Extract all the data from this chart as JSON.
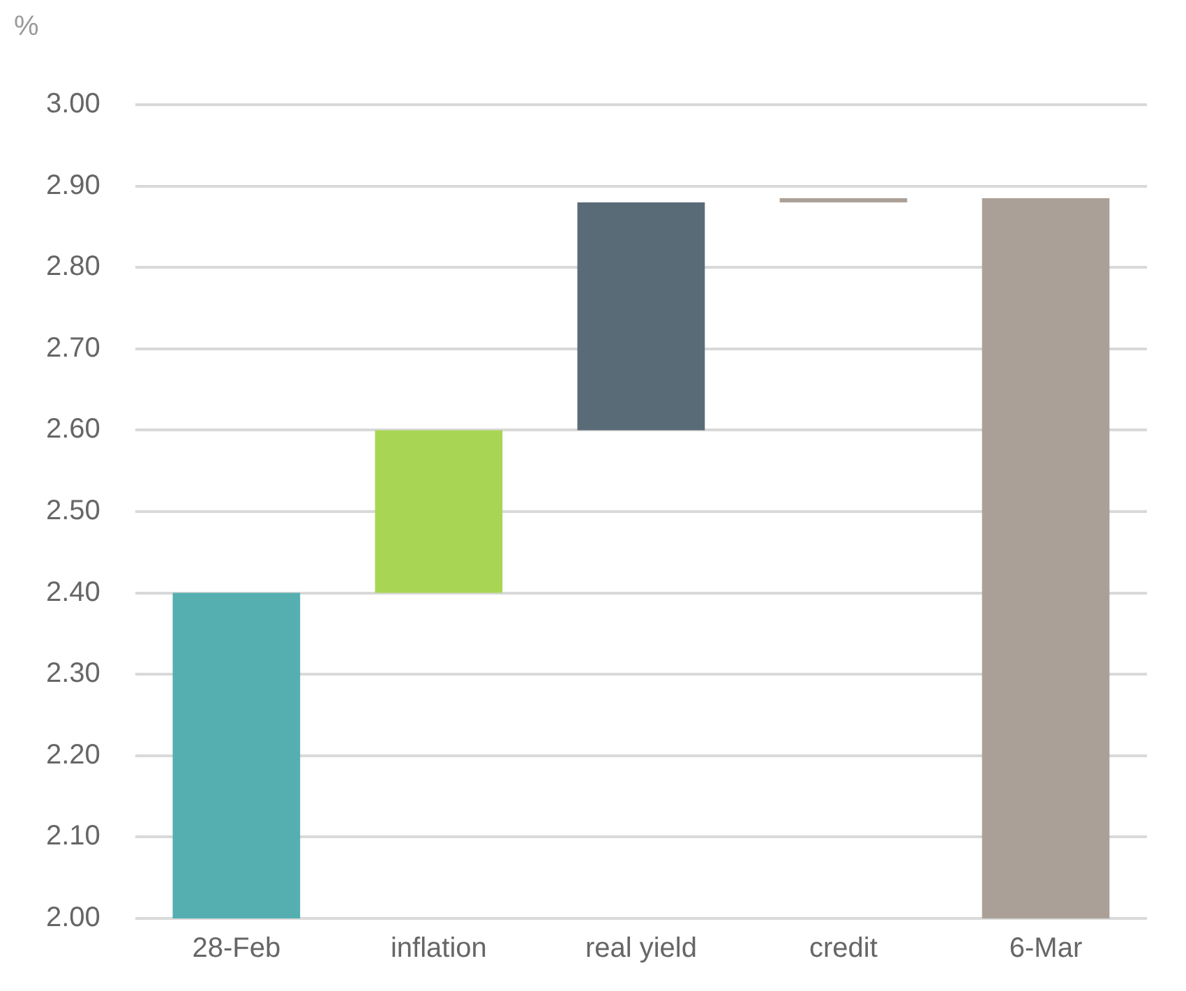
{
  "chart_data": {
    "type": "bar",
    "ylabel": "%",
    "categories": [
      "28-Feb",
      "inflation",
      "real yield",
      "credit",
      "6-Mar"
    ],
    "values": [
      0.4,
      0.2,
      0.28,
      0.005,
      0.885
    ],
    "base": [
      2.0,
      2.4,
      2.6,
      2.88,
      2.0
    ],
    "colors": [
      "#55afb0",
      "#a8d654",
      "#5a6b78",
      "#aba097",
      "#aba097"
    ],
    "ylim": [
      2.0,
      3.0
    ],
    "yticks": [
      {
        "value": 2.0,
        "label": "2.00"
      },
      {
        "value": 2.1,
        "label": "2.10"
      },
      {
        "value": 2.2,
        "label": "2.20"
      },
      {
        "value": 2.3,
        "label": "2.30"
      },
      {
        "value": 2.4,
        "label": "2.40"
      },
      {
        "value": 2.5,
        "label": "2.50"
      },
      {
        "value": 2.6,
        "label": "2.60"
      },
      {
        "value": 2.7,
        "label": "2.70"
      },
      {
        "value": 2.8,
        "label": "2.80"
      },
      {
        "value": 2.9,
        "label": "2.90"
      },
      {
        "value": 3.0,
        "label": "3.00"
      }
    ],
    "grid": "y",
    "legend": false
  }
}
